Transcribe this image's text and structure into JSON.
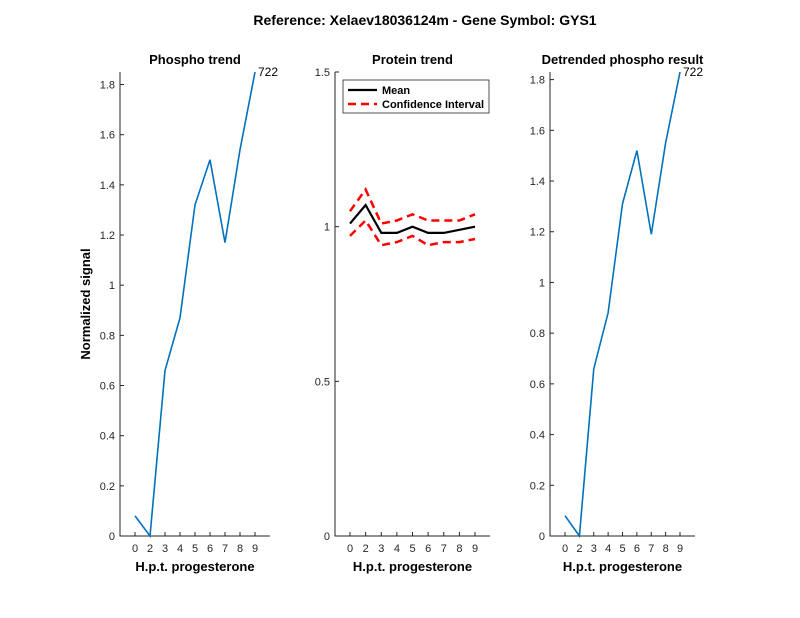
{
  "figure": {
    "suptitle": "Reference:  Xelaev18036124m - Gene Symbol:  GYS1"
  },
  "chart_data": [
    {
      "type": "line",
      "title": "Phospho trend",
      "xlabel": "H.p.t. progesterone",
      "ylabel": "Normalized signal",
      "categories": [
        "0",
        "2",
        "3",
        "4",
        "5",
        "6",
        "7",
        "8",
        "9"
      ],
      "ylim": [
        0,
        1.85
      ],
      "yticks": [
        0,
        0.2,
        0.4,
        0.6,
        0.8,
        1,
        1.2,
        1.4,
        1.6,
        1.8
      ],
      "series": [
        {
          "values": [
            0.08,
            0.0,
            0.66,
            0.87,
            1.32,
            1.5,
            1.17,
            1.54,
            1.85
          ],
          "color": "#0072bd",
          "style": "solid"
        }
      ],
      "annotations": [
        {
          "text": "722",
          "at_index": 8
        }
      ],
      "grid": false
    },
    {
      "type": "line",
      "title": "Protein trend",
      "xlabel": "H.p.t. progesterone",
      "ylabel": "",
      "categories": [
        "0",
        "2",
        "3",
        "4",
        "5",
        "6",
        "7",
        "8",
        "9"
      ],
      "ylim": [
        0,
        1.5
      ],
      "yticks": [
        0,
        0.5,
        1,
        1.5
      ],
      "series": [
        {
          "name": "Mean",
          "values": [
            1.01,
            1.07,
            0.98,
            0.98,
            1.0,
            0.98,
            0.98,
            0.99,
            1.0
          ],
          "color": "#000000",
          "style": "solid"
        },
        {
          "name": "Confidence Interval",
          "values": [
            1.05,
            1.12,
            1.01,
            1.02,
            1.04,
            1.02,
            1.02,
            1.02,
            1.04
          ],
          "color": "#ff0000",
          "style": "dashed"
        },
        {
          "name": "",
          "values": [
            0.97,
            1.02,
            0.94,
            0.95,
            0.97,
            0.94,
            0.95,
            0.95,
            0.96
          ],
          "color": "#ff0000",
          "style": "dashed"
        }
      ],
      "legend": {
        "position": "top-left",
        "entries": [
          "Mean",
          "Confidence Interval"
        ]
      },
      "grid": false
    },
    {
      "type": "line",
      "title": "Detrended phospho result",
      "xlabel": "H.p.t. progesterone",
      "ylabel": "",
      "categories": [
        "0",
        "2",
        "3",
        "4",
        "5",
        "6",
        "7",
        "8",
        "9"
      ],
      "ylim": [
        0,
        1.83
      ],
      "yticks": [
        0,
        0.2,
        0.4,
        0.6,
        0.8,
        1,
        1.2,
        1.4,
        1.6,
        1.8
      ],
      "series": [
        {
          "values": [
            0.08,
            0.0,
            0.66,
            0.88,
            1.31,
            1.52,
            1.19,
            1.55,
            1.83
          ],
          "color": "#0072bd",
          "style": "solid"
        }
      ],
      "annotations": [
        {
          "text": "722",
          "at_index": 8
        }
      ],
      "grid": false
    }
  ]
}
